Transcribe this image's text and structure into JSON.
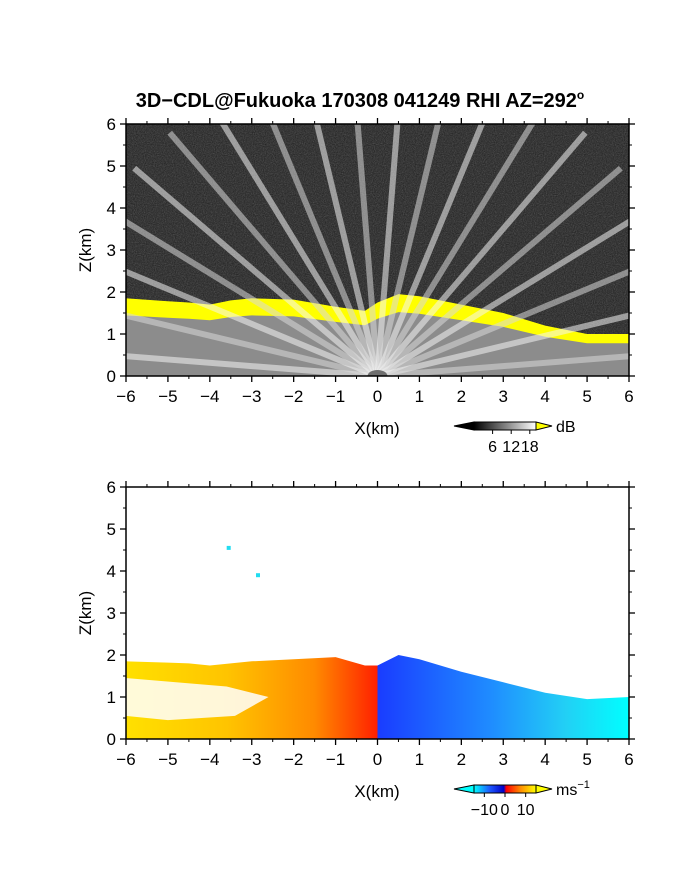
{
  "figure": {
    "title": "3D−CDL@Fukuoka 170308 041249 RHI AZ=292",
    "title_degree": "o"
  },
  "chart_data": [
    {
      "type": "heatmap",
      "quantity": "backscatter intensity",
      "xlabel": "X(km)",
      "ylabel": "Z(km)",
      "xlim": [
        -6,
        6
      ],
      "ylim": [
        0,
        6
      ],
      "xticks": [
        "−6",
        "−5",
        "−4",
        "−3",
        "−2",
        "−1",
        "0",
        "1",
        "2",
        "3",
        "4",
        "5",
        "6"
      ],
      "yticks": [
        "0",
        "1",
        "2",
        "3",
        "4",
        "5",
        "6"
      ],
      "x_tick_values": [
        -6,
        -5,
        -4,
        -3,
        -2,
        -1,
        0,
        1,
        2,
        3,
        4,
        5,
        6
      ],
      "y_tick_values": [
        0,
        1,
        2,
        3,
        4,
        5,
        6
      ],
      "grid": false,
      "background_color": "#1c1c1c",
      "saturation_color": "#ffff00",
      "cloud_top_km": [
        [
          -6,
          1.85
        ],
        [
          -5,
          1.78
        ],
        [
          -4.5,
          1.75
        ],
        [
          -4,
          1.7
        ],
        [
          -3.5,
          1.8
        ],
        [
          -3,
          1.85
        ],
        [
          -2,
          1.82
        ],
        [
          -1,
          1.65
        ],
        [
          -0.3,
          1.55
        ],
        [
          0,
          1.75
        ],
        [
          0.5,
          1.95
        ],
        [
          1,
          1.9
        ],
        [
          2,
          1.7
        ],
        [
          3,
          1.5
        ],
        [
          4,
          1.2
        ],
        [
          5,
          1.0
        ],
        [
          6,
          1.0
        ]
      ],
      "colorbar": {
        "unit": "dB",
        "ticks": [
          "6",
          "12",
          "18"
        ],
        "tick_values": [
          6,
          12,
          18
        ],
        "range": [
          0,
          20
        ],
        "colors": [
          "#000000",
          "#808080",
          "#ffffff"
        ],
        "over_color": "#ffff00"
      }
    },
    {
      "type": "heatmap",
      "quantity": "radial velocity",
      "xlabel": "X(km)",
      "ylabel": "Z(km)",
      "xlim": [
        -6,
        6
      ],
      "ylim": [
        0,
        6
      ],
      "xticks": [
        "−6",
        "−5",
        "−4",
        "−3",
        "−2",
        "−1",
        "0",
        "1",
        "2",
        "3",
        "4",
        "5",
        "6"
      ],
      "yticks": [
        "0",
        "1",
        "2",
        "3",
        "4",
        "5",
        "6"
      ],
      "x_tick_values": [
        -6,
        -5,
        -4,
        -3,
        -2,
        -1,
        0,
        1,
        2,
        3,
        4,
        5,
        6
      ],
      "y_tick_values": [
        0,
        1,
        2,
        3,
        4,
        5,
        6
      ],
      "grid": false,
      "cloud_top_km": [
        [
          -6,
          1.85
        ],
        [
          -5,
          1.82
        ],
        [
          -4.5,
          1.8
        ],
        [
          -4,
          1.75
        ],
        [
          -3.5,
          1.8
        ],
        [
          -3,
          1.85
        ],
        [
          -2,
          1.9
        ],
        [
          -1,
          1.95
        ],
        [
          -0.3,
          1.75
        ],
        [
          0,
          1.75
        ],
        [
          0.5,
          2.0
        ],
        [
          1,
          1.9
        ],
        [
          2,
          1.6
        ],
        [
          3,
          1.35
        ],
        [
          4,
          1.1
        ],
        [
          5,
          0.95
        ],
        [
          6,
          1.0
        ]
      ],
      "echo_points": [
        [
          -3.55,
          4.55
        ],
        [
          -2.85,
          3.9
        ]
      ],
      "colorbar": {
        "unit": "ms",
        "unit_exponent": "−1",
        "ticks": [
          "−10",
          "0",
          "10"
        ],
        "tick_values": [
          -10,
          0,
          10
        ],
        "range": [
          -15,
          15
        ],
        "colors": [
          "#00ffff",
          "#1e5bff",
          "#0000c8",
          "#ff0000",
          "#ff8c00",
          "#ffff00"
        ],
        "under_color": "#00ffff",
        "over_color": "#ffff00"
      }
    }
  ]
}
